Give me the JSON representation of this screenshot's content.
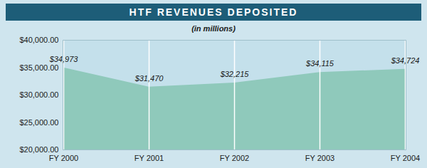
{
  "chart_data": {
    "type": "area",
    "title": "HTF REVENUES DEPOSITED",
    "subtitle": "(in millions)",
    "categories": [
      "FY 2000",
      "FY 2001",
      "FY 2002",
      "FY 2003",
      "FY 2004"
    ],
    "values": [
      34973,
      31470,
      32215,
      34115,
      34724
    ],
    "value_labels": [
      "$34,973",
      "$31,470",
      "$32,215",
      "$34,115",
      "$34,724"
    ],
    "data_labels": true,
    "color": "#8fc9bb",
    "ylim": [
      20000,
      40000
    ],
    "yticks": [
      {
        "value": 20000,
        "label": "$20,000.00"
      },
      {
        "value": 25000,
        "label": "$25,000.00"
      },
      {
        "value": 30000,
        "label": "$30,000.00"
      },
      {
        "value": 35000,
        "label": "$35,000.00"
      },
      {
        "value": 40000,
        "label": "$40,000.00"
      }
    ],
    "grid": true
  }
}
